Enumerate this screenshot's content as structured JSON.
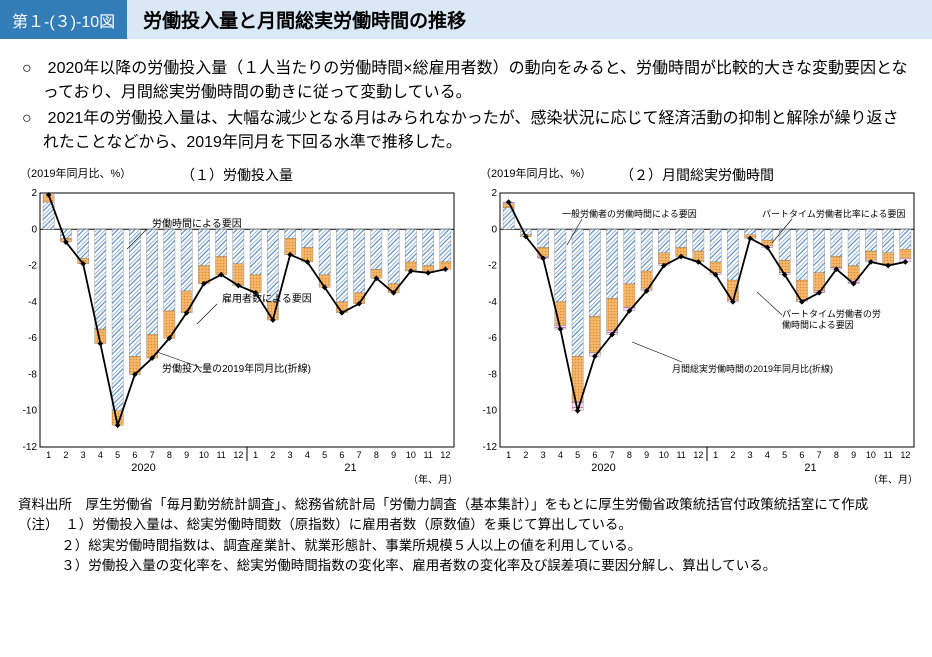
{
  "header": {
    "tag": "第１-(３)-10図",
    "title": "労働投入量と月間総実労働時間の推移"
  },
  "bullets": [
    "○　2020年以降の労働投入量（１人当たりの労働時間×総雇用者数）の動向をみると、労働時間が比較的大きな変動要因となっており、月間総実労働時間の動きに従って変動している。",
    "○　2021年の労働投入量は、大幅な減少となる月はみられなかったが、感染状況に応じて経済活動の抑制と解除が繰り返されたことなどから、2019年同月を下回る水準で推移した。"
  ],
  "chart_common": {
    "ylim": [
      -12,
      2
    ],
    "ytick_step": 2,
    "yaxis_label": "（2019年同月比、%）",
    "xaxis_months": [
      "1",
      "2",
      "3",
      "4",
      "5",
      "6",
      "7",
      "8",
      "9",
      "10",
      "11",
      "12",
      "1",
      "2",
      "3",
      "4",
      "5",
      "6",
      "7",
      "8",
      "9",
      "10",
      "11",
      "12"
    ],
    "year_labels": [
      "2020",
      "21"
    ],
    "xaxis_unit": "（年、月）",
    "border_color": "#000",
    "grid_color": "#bbb",
    "panel_bg": "#fff",
    "bar1_fill": "#ffffff",
    "bar1_hatch": "#5a8cc4",
    "bar2_fill": "#f5b86e",
    "bar2_hatch": "#e08a28",
    "bar3_fill": "#f7d8f0",
    "bar3_hatch": "#c77eb8",
    "line_color": "#000",
    "line_width": 1.8,
    "bar_width": 0.65
  },
  "chart1": {
    "title": "（１）労働投入量",
    "legend": {
      "bar1": "労働時間による要因",
      "bar2": "雇用者数による要因",
      "line": "労働投入量の2019年同月比(折線)"
    },
    "bar1": [
      1.5,
      -0.5,
      -1.6,
      -5.5,
      -10.0,
      -7.0,
      -5.8,
      -4.5,
      -3.4,
      -2.0,
      -1.5,
      -1.9,
      -2.5,
      -4.0,
      -0.5,
      -1.0,
      -2.5,
      -4.0,
      -3.5,
      -2.2,
      -3.0,
      -1.8,
      -2.0,
      -1.8
    ],
    "bar2": [
      0.4,
      -0.2,
      -0.3,
      -0.8,
      -0.8,
      -1.0,
      -1.3,
      -1.5,
      -1.2,
      -1.0,
      -1.0,
      -1.2,
      -1.0,
      -1.0,
      -0.9,
      -0.8,
      -0.7,
      -0.6,
      -0.6,
      -0.5,
      -0.5,
      -0.5,
      -0.4,
      -0.4
    ],
    "line": [
      1.9,
      -0.7,
      -1.9,
      -6.3,
      -10.8,
      -8.0,
      -7.1,
      -6.0,
      -4.6,
      -3.0,
      -2.5,
      -3.1,
      -3.5,
      -5.0,
      -1.4,
      -1.8,
      -3.2,
      -4.6,
      -4.1,
      -2.7,
      -3.5,
      -2.3,
      -2.4,
      -2.2
    ]
  },
  "chart2": {
    "title": "（２）月間総実労働時間",
    "legend": {
      "bar1": "一般労働者の労働時間による要因",
      "bar2": "パートタイム労働者の労働時間による要因",
      "bar3": "パートタイム労働者比率による要因",
      "line": "月間総実労働時間の2019年同月比(折線)"
    },
    "bar1": [
      1.2,
      -0.3,
      -1.0,
      -4.0,
      -7.0,
      -4.8,
      -3.8,
      -3.0,
      -2.3,
      -1.3,
      -1.0,
      -1.2,
      -1.8,
      -2.8,
      -0.3,
      -0.6,
      -1.7,
      -2.8,
      -2.4,
      -1.5,
      -2.0,
      -1.2,
      -1.3,
      -1.1
    ],
    "bar2": [
      0.2,
      -0.1,
      -0.5,
      -1.3,
      -2.5,
      -2.0,
      -1.8,
      -1.3,
      -1.0,
      -0.6,
      -0.5,
      -0.6,
      -0.6,
      -1.1,
      -0.2,
      -0.3,
      -0.7,
      -1.1,
      -1.0,
      -0.6,
      -0.8,
      -0.5,
      -0.6,
      -0.5
    ],
    "bar3": [
      0.1,
      0,
      -0.1,
      -0.2,
      -0.5,
      -0.2,
      -0.2,
      -0.2,
      -0.1,
      -0.1,
      0,
      0,
      -0.1,
      -0.1,
      0,
      -0.1,
      -0.1,
      -0.1,
      -0.1,
      -0.1,
      -0.2,
      -0.1,
      -0.1,
      -0.2
    ],
    "line": [
      1.5,
      -0.4,
      -1.6,
      -5.5,
      -10.0,
      -7.0,
      -5.8,
      -4.5,
      -3.4,
      -2.0,
      -1.5,
      -1.8,
      -2.5,
      -4.0,
      -0.5,
      -1.0,
      -2.5,
      -4.0,
      -3.5,
      -2.2,
      -3.0,
      -1.8,
      -2.0,
      -1.8
    ]
  },
  "footer": {
    "source": "資料出所　厚生労働省「毎月勤労統計調査」、総務省統計局「労働力調査（基本集計）」をもとに厚生労働省政策統括官付政策統括室にて作成",
    "notes": [
      "（注）　１）労働投入量は、総実労働時間数（原指数）に雇用者数（原数値）を乗じて算出している。",
      "２）総実労働時間指数は、調査産業計、就業形態計、事業所規模５人以上の値を利用している。",
      "３）労働投入量の変化率を、総実労働時間指数の変化率、雇用者数の変化率及び誤差項に要因分解し、算出している。"
    ]
  }
}
